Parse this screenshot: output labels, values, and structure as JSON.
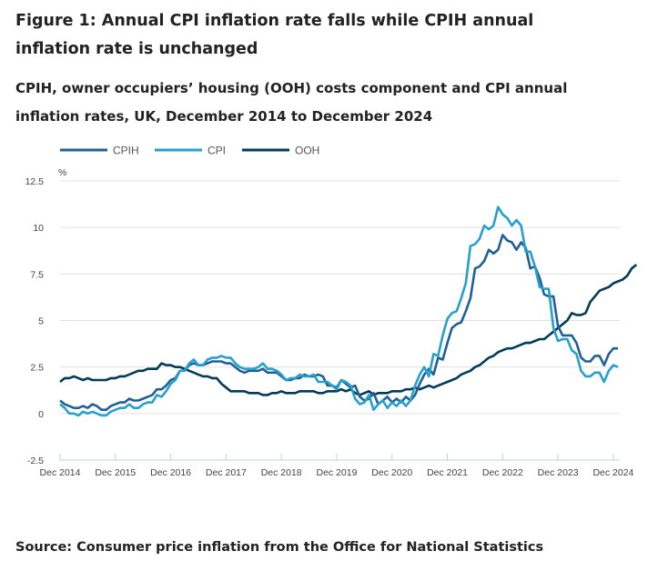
{
  "title": "Figure 1: Annual CPI inflation rate falls while CPIH annual inflation rate is unchanged",
  "subtitle": "CPIH, owner occupiers’ housing (OOH) costs component and CPI annual inflation rates, UK, December 2014 to December 2024",
  "source": "Source: Consumer price inflation from the Office for National Statistics",
  "chart_data": {
    "type": "line",
    "title": "CPIH, owner occupiers’ housing (OOH) costs component and CPI annual inflation rates, UK, December 2014 to December 2024",
    "xlabel": "",
    "ylabel": "%",
    "ylim": [
      -2.5,
      12.5
    ],
    "yticks": [
      "12.5",
      "10",
      "7.5",
      "5",
      "2.5",
      "0",
      "-2.5"
    ],
    "ytick_values": [
      12.5,
      10,
      7.5,
      5,
      2.5,
      0,
      -2.5
    ],
    "xticks": [
      "Dec 2014",
      "Dec 2015",
      "Dec 2016",
      "Dec 2017",
      "Dec 2018",
      "Dec 2019",
      "Dec 2020",
      "Dec 2021",
      "Dec 2022",
      "Dec 2023",
      "Dec 2024"
    ],
    "x_start": "Dec 2014",
    "x_end": "Dec 2024",
    "x_frequency": "monthly",
    "grid": true,
    "legend_position": "top-left",
    "series": [
      {
        "name": "CPIH",
        "color": "#206095",
        "values": [
          0.7,
          0.5,
          0.4,
          0.3,
          0.3,
          0.4,
          0.3,
          0.5,
          0.4,
          0.2,
          0.2,
          0.4,
          0.5,
          0.6,
          0.6,
          0.8,
          0.7,
          0.7,
          0.8,
          0.9,
          1.0,
          1.3,
          1.3,
          1.5,
          1.8,
          1.9,
          2.3,
          2.3,
          2.6,
          2.7,
          2.6,
          2.6,
          2.7,
          2.8,
          2.8,
          2.8,
          2.7,
          2.7,
          2.5,
          2.3,
          2.2,
          2.3,
          2.3,
          2.3,
          2.4,
          2.2,
          2.2,
          2.2,
          2.0,
          1.8,
          1.8,
          1.9,
          1.9,
          2.1,
          2.0,
          2.0,
          2.1,
          2.0,
          1.5,
          1.5,
          1.4,
          1.8,
          1.6,
          1.4,
          1.5,
          0.9,
          0.7,
          0.8,
          1.1,
          0.5,
          0.7,
          0.9,
          0.6,
          0.8,
          0.6,
          0.9,
          0.7,
          1.0,
          1.6,
          2.1,
          2.4,
          2.1,
          3.0,
          2.9,
          3.8,
          4.6,
          4.8,
          4.9,
          5.5,
          6.2,
          7.8,
          7.9,
          8.2,
          8.8,
          8.6,
          8.8,
          9.6,
          9.3,
          9.2,
          8.8,
          9.2,
          8.9,
          7.8,
          7.9,
          7.3,
          6.4,
          6.3,
          6.3,
          4.7,
          4.2,
          4.2,
          4.2,
          3.8,
          3.0,
          2.8,
          2.8,
          3.1,
          3.1,
          2.6,
          3.2,
          3.5,
          3.5
        ]
      },
      {
        "name": "CPI",
        "color": "#27a0cc",
        "values": [
          0.5,
          0.3,
          0.0,
          0.0,
          -0.1,
          0.1,
          0.0,
          0.1,
          0.0,
          -0.1,
          -0.1,
          0.1,
          0.2,
          0.3,
          0.3,
          0.5,
          0.3,
          0.3,
          0.5,
          0.6,
          0.6,
          1.0,
          0.9,
          1.2,
          1.6,
          1.8,
          2.3,
          2.3,
          2.7,
          2.9,
          2.6,
          2.6,
          2.9,
          3.0,
          3.0,
          3.1,
          3.0,
          3.0,
          2.7,
          2.5,
          2.4,
          2.4,
          2.4,
          2.5,
          2.7,
          2.4,
          2.4,
          2.3,
          2.1,
          1.8,
          1.9,
          1.9,
          2.1,
          2.0,
          2.0,
          2.1,
          1.7,
          1.7,
          1.7,
          1.5,
          1.3,
          1.8,
          1.7,
          1.5,
          0.8,
          0.5,
          0.6,
          1.0,
          0.2,
          0.5,
          0.7,
          0.3,
          0.6,
          0.4,
          0.7,
          0.4,
          0.7,
          1.5,
          2.1,
          2.5,
          2.0,
          3.2,
          3.1,
          4.2,
          5.1,
          5.4,
          5.5,
          6.2,
          7.0,
          9.0,
          9.1,
          9.4,
          10.1,
          9.9,
          10.1,
          11.1,
          10.7,
          10.5,
          10.1,
          10.4,
          10.1,
          8.7,
          8.7,
          7.9,
          6.8,
          6.7,
          6.7,
          4.6,
          3.9,
          4.0,
          4.0,
          3.4,
          3.2,
          2.3,
          2.0,
          2.0,
          2.2,
          2.2,
          1.7,
          2.3,
          2.6,
          2.5
        ]
      },
      {
        "name": "OOH",
        "color": "#003c57",
        "values": [
          1.7,
          1.9,
          1.9,
          2.0,
          1.9,
          1.8,
          1.9,
          1.8,
          1.8,
          1.8,
          1.8,
          1.9,
          1.9,
          2.0,
          2.0,
          2.1,
          2.2,
          2.3,
          2.3,
          2.4,
          2.4,
          2.4,
          2.7,
          2.6,
          2.6,
          2.5,
          2.5,
          2.4,
          2.3,
          2.2,
          2.1,
          2.0,
          2.0,
          1.9,
          1.9,
          1.6,
          1.4,
          1.2,
          1.2,
          1.2,
          1.2,
          1.1,
          1.1,
          1.1,
          1.0,
          1.0,
          1.1,
          1.1,
          1.2,
          1.1,
          1.1,
          1.1,
          1.2,
          1.2,
          1.2,
          1.2,
          1.1,
          1.1,
          1.2,
          1.2,
          1.2,
          1.3,
          1.2,
          1.3,
          1.1,
          1.0,
          1.1,
          1.2,
          1.0,
          1.1,
          1.1,
          1.1,
          1.2,
          1.2,
          1.2,
          1.3,
          1.3,
          1.4,
          1.3,
          1.4,
          1.5,
          1.4,
          1.5,
          1.6,
          1.7,
          1.8,
          1.9,
          2.1,
          2.2,
          2.3,
          2.5,
          2.6,
          2.8,
          3.0,
          3.1,
          3.3,
          3.4,
          3.5,
          3.5,
          3.6,
          3.7,
          3.8,
          3.8,
          3.9,
          4.0,
          4.0,
          4.2,
          4.4,
          4.6,
          4.8,
          5.0,
          5.4,
          5.3,
          5.3,
          5.4,
          6.0,
          6.3,
          6.6,
          6.7,
          6.8,
          7.0,
          7.1,
          7.2,
          7.4,
          7.8,
          8.0
        ]
      }
    ]
  }
}
